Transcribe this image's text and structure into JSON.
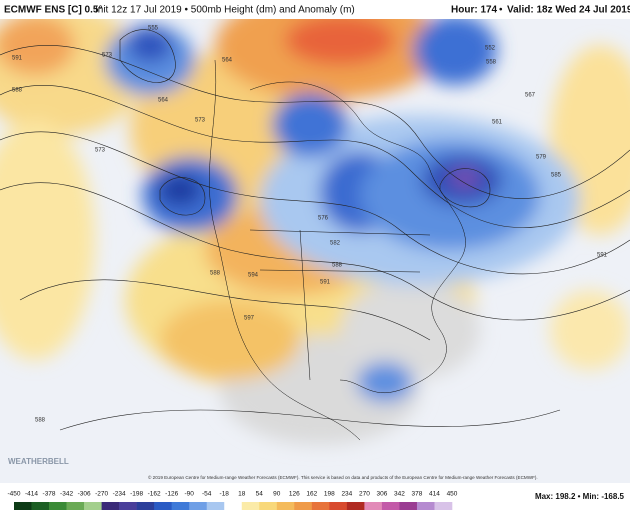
{
  "header": {
    "title": "ECMWF ENS [C] 0.5°",
    "subtitle": "Init 12z 17 Jul 2019 • 500mb Height (dm) and Anomaly (m)",
    "hour": "Hour: 174",
    "valid": "Valid: 18z Wed 24 Jul 2019",
    "separator": "•"
  },
  "map": {
    "contour_labels": [
      591,
      588,
      564,
      555,
      573,
      573,
      573,
      564,
      552,
      558,
      561,
      567,
      579,
      585,
      591,
      576,
      582,
      588,
      591,
      594,
      597,
      588,
      588
    ],
    "credit": "© 2019 European Centre for Medium-range Weather Forecasts (ECMWF). This service is based on data and products of the European Centre for Medium-range Weather Forecasts (ECMWF).",
    "watermark": "WEATHERBELL"
  },
  "colorbar": {
    "ticks": [
      -450,
      -414,
      -378,
      -342,
      -306,
      -270,
      -234,
      -198,
      -162,
      -126,
      -90,
      -54,
      -18,
      18,
      54,
      90,
      126,
      162,
      198,
      234,
      270,
      306,
      342,
      378,
      414,
      450
    ],
    "colors": [
      "#0d3b16",
      "#1c5f24",
      "#3a8a36",
      "#6aaa55",
      "#a3cf8c",
      "#3a2a78",
      "#4a3f9a",
      "#2c3f9a",
      "#2a5bc4",
      "#3f7ad8",
      "#6f9fe6",
      "#a8c7f0",
      "#ffffff",
      "#fbeba8",
      "#f8d87a",
      "#f4bb5c",
      "#ef9a48",
      "#e7733a",
      "#d84a2e",
      "#b02a22",
      "#e28ab8",
      "#c35aa8",
      "#9a3c92",
      "#b58ad0",
      "#d8c2e8"
    ],
    "stats": "Max: 198.2 • Min: -168.5"
  }
}
